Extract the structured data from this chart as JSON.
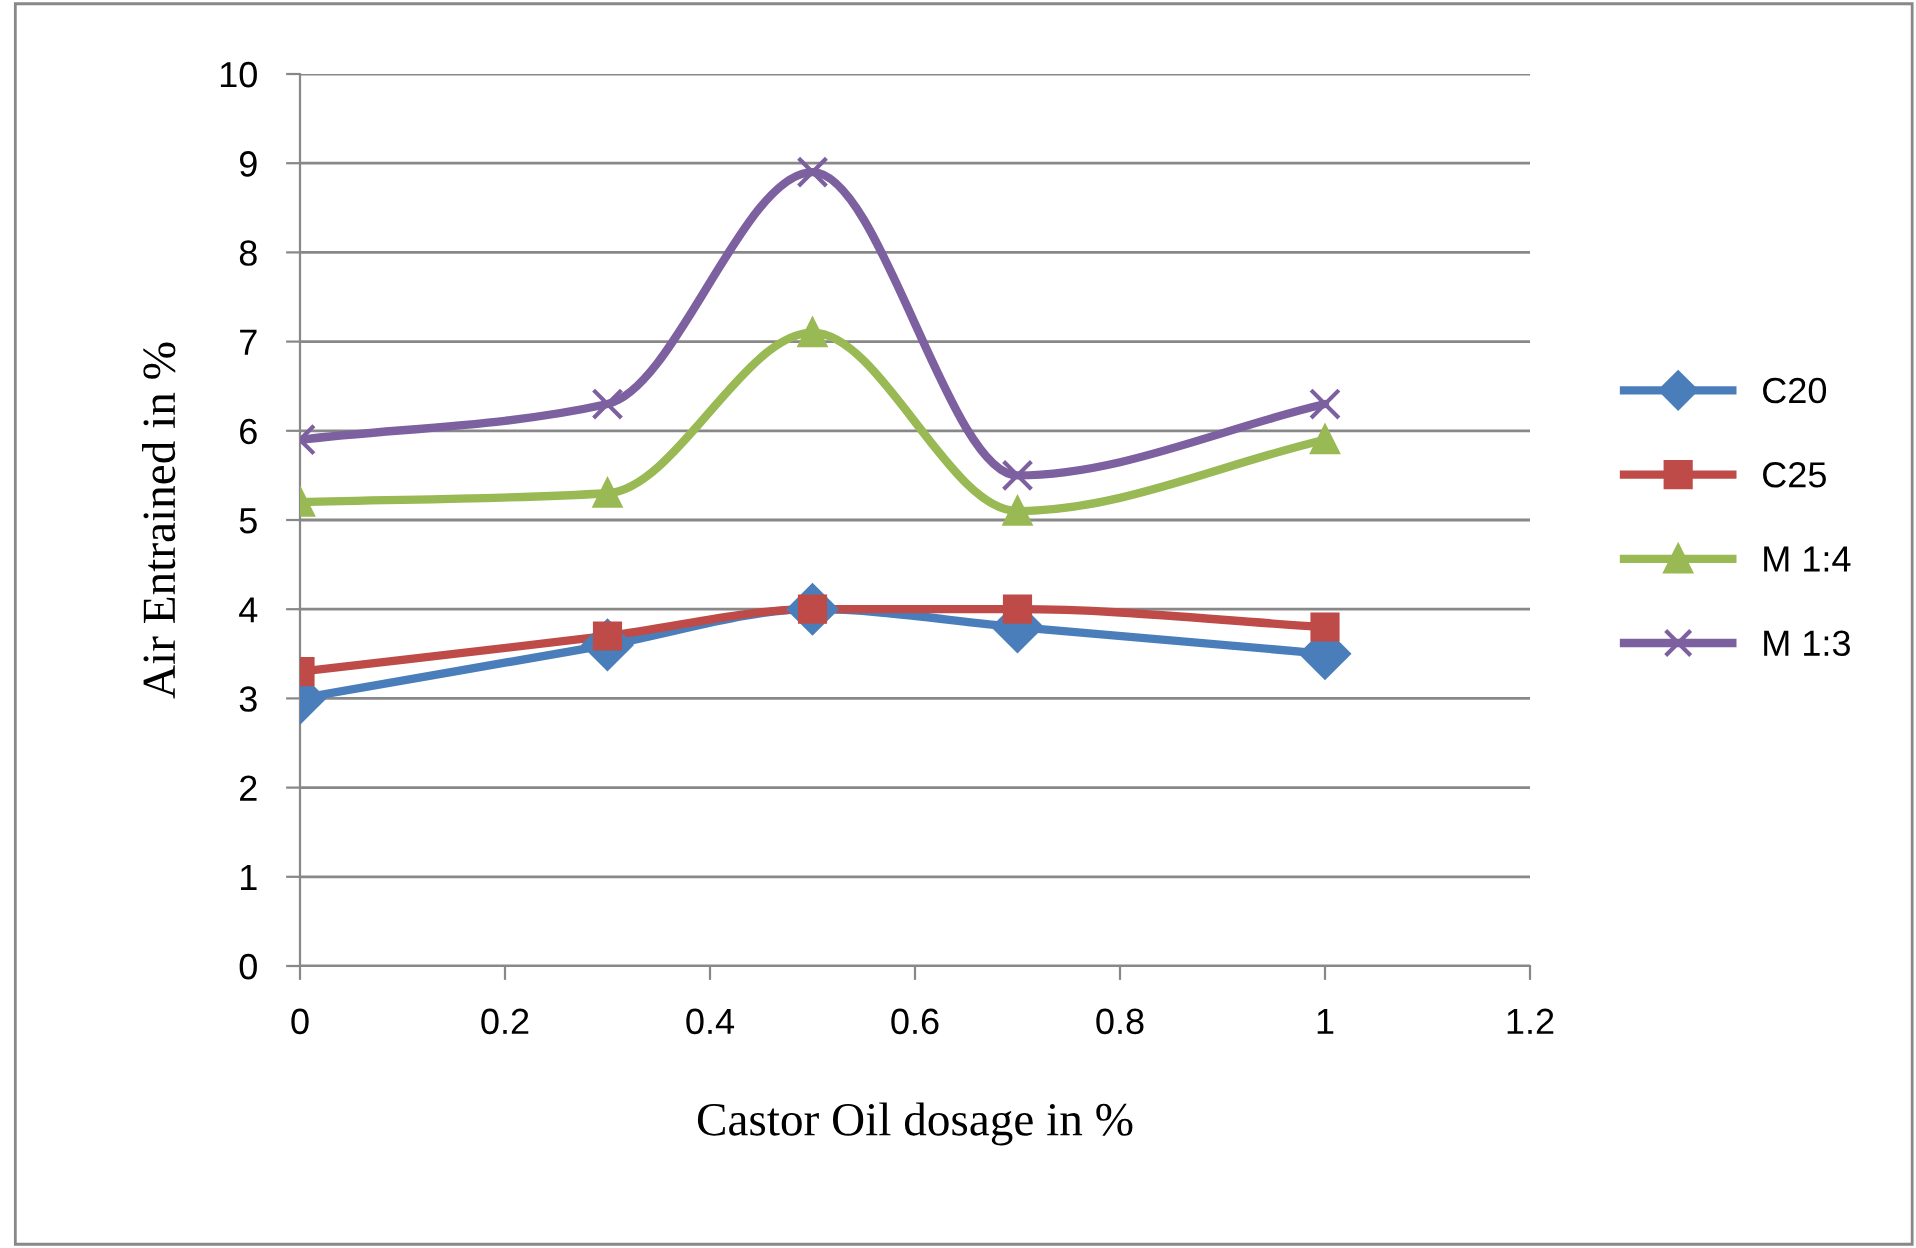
{
  "chart_data": {
    "type": "line",
    "xlabel": "Castor Oil dosage in %",
    "ylabel": "Air Entrained in %",
    "x": [
      0,
      0.3,
      0.5,
      0.7,
      1
    ],
    "series": [
      {
        "name": "C20",
        "color": "#4a7ebb",
        "marker": "diamond",
        "values": [
          3.0,
          3.6,
          4.0,
          3.8,
          3.5
        ]
      },
      {
        "name": "C25",
        "color": "#be4b48",
        "marker": "square",
        "values": [
          3.3,
          3.7,
          4.0,
          4.0,
          3.8
        ]
      },
      {
        "name": "M 1:4",
        "color": "#98b954",
        "marker": "triangle",
        "values": [
          5.2,
          5.3,
          7.1,
          5.1,
          5.9
        ]
      },
      {
        "name": "M 1:3",
        "color": "#7d60a0",
        "marker": "cross",
        "values": [
          5.9,
          6.3,
          8.9,
          5.5,
          6.3
        ]
      }
    ],
    "xlim": [
      0,
      1.2
    ],
    "xticks": [
      0,
      0.2,
      0.4,
      0.6,
      0.8,
      1,
      1.2
    ],
    "ylim": [
      0,
      10
    ],
    "yticks": [
      0,
      1,
      2,
      3,
      4,
      5,
      6,
      7,
      8,
      9,
      10
    ],
    "grid": "y",
    "legend": "right"
  }
}
